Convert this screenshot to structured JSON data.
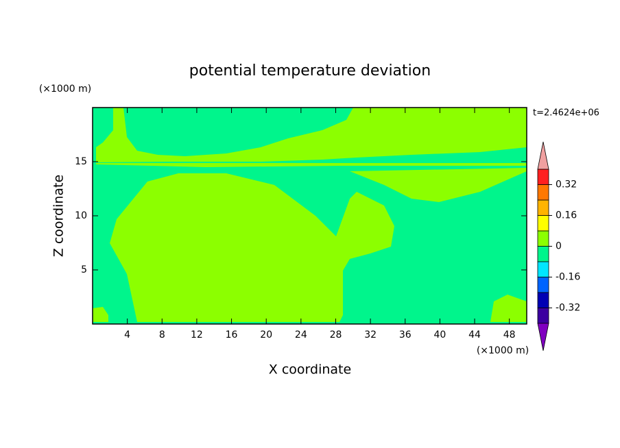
{
  "chart_data": {
    "type": "contour",
    "title": "potential temperature deviation",
    "x_label": "X coordinate",
    "y_label": "Z coordinate",
    "x_unit": "(×1000 m)",
    "y_unit": "(×1000 m)",
    "annotation": "t=2.4624e+06",
    "xlim": [
      0,
      50
    ],
    "ylim": [
      0,
      20
    ],
    "xticks": [
      4,
      8,
      12,
      16,
      20,
      24,
      28,
      32,
      36,
      40,
      44,
      48
    ],
    "yticks": [
      5,
      10,
      15
    ],
    "colorbar": {
      "levels": [
        -0.4,
        -0.32,
        -0.24,
        -0.16,
        -0.08,
        0,
        0.08,
        0.16,
        0.24,
        0.32,
        0.4
      ],
      "colors": [
        "#3c00a0",
        "#0000b4",
        "#0064ff",
        "#00e6ff",
        "#00f58c",
        "#8cff00",
        "#ffff00",
        "#ffb400",
        "#ff7800",
        "#ff2020"
      ],
      "under_color": "#8000c0",
      "over_color": "#f0a0a0",
      "ticks": [
        -0.32,
        -0.16,
        0,
        0.16,
        0.32
      ]
    }
  }
}
